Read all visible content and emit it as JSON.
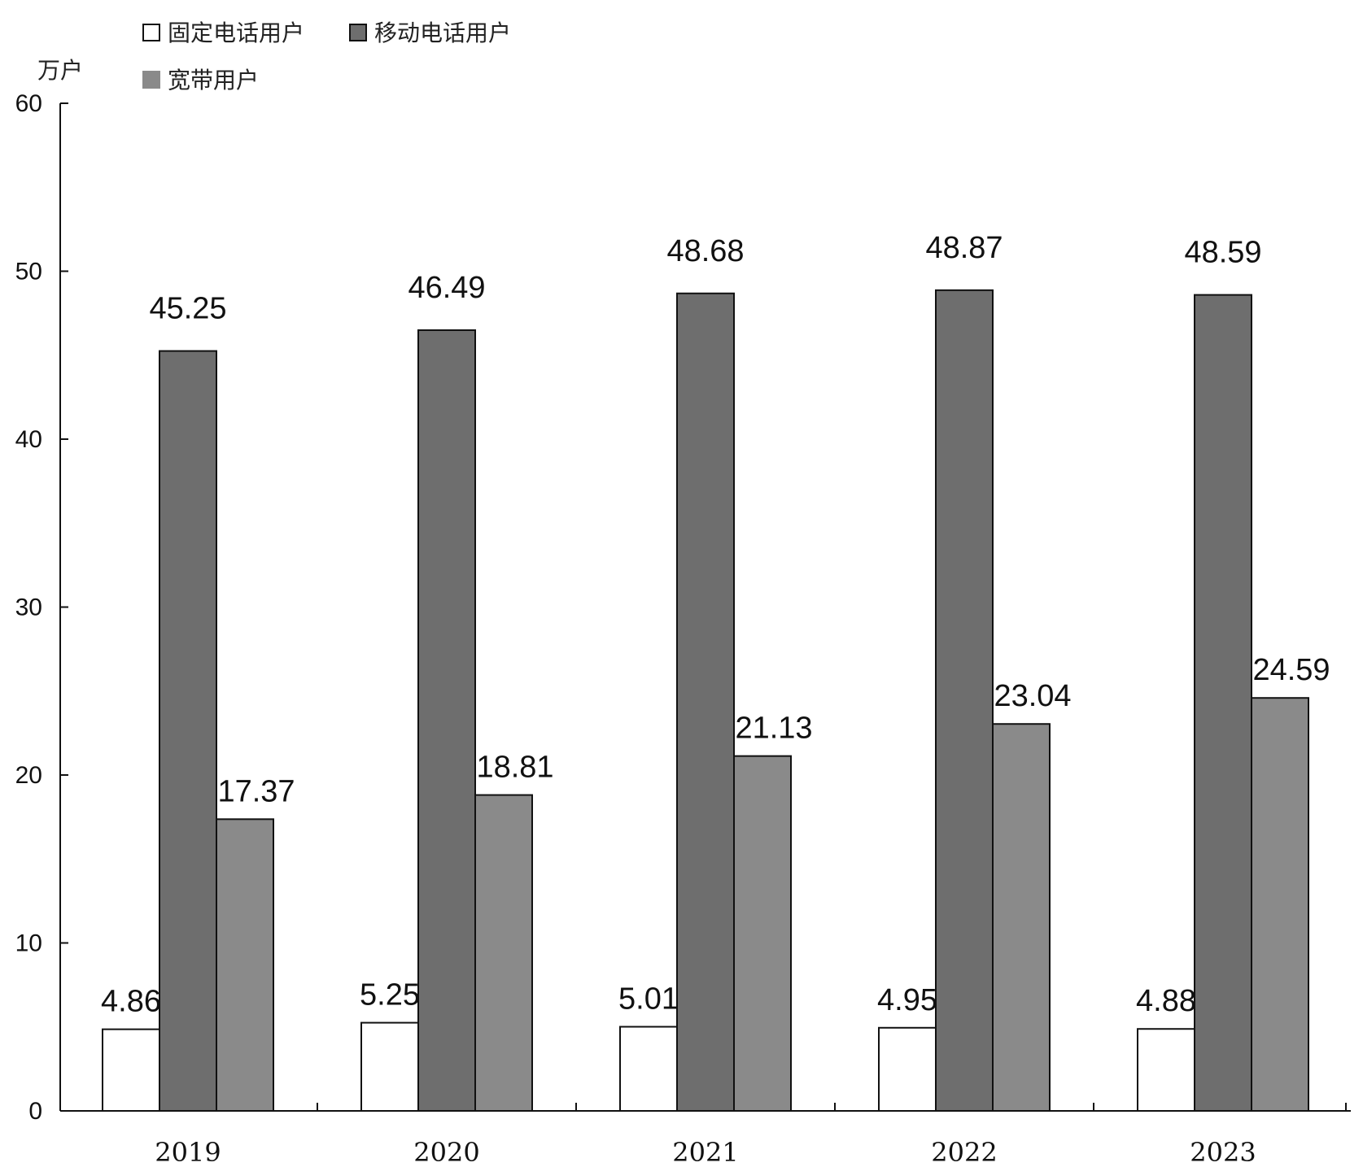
{
  "chart_data": {
    "type": "bar",
    "title": "",
    "xlabel": "",
    "ylabel": "万户",
    "categories": [
      "2019",
      "2020",
      "2021",
      "2022",
      "2023"
    ],
    "yticks": [
      0,
      10,
      20,
      30,
      40,
      50,
      60
    ],
    "ylim": [
      0,
      60
    ],
    "grid": false,
    "legend_position": "top-left",
    "series": [
      {
        "name": "固定电话用户",
        "values": [
          4.86,
          5.25,
          5.01,
          4.95,
          4.88
        ],
        "labels": [
          "4.86",
          "5.25",
          "5.01",
          "4.95",
          "4.88"
        ],
        "color": "#ffffff"
      },
      {
        "name": "移动电话用户",
        "values": [
          45.25,
          46.49,
          48.68,
          48.87,
          48.59
        ],
        "labels": [
          "45.25",
          "46.49",
          "48.68",
          "48.87",
          "48.59"
        ],
        "color": "#6e6e6e"
      },
      {
        "name": "宽带用户",
        "values": [
          17.37,
          18.81,
          21.13,
          23.04,
          24.59
        ],
        "labels": [
          "17.37",
          "18.81",
          "21.13",
          "23.04",
          "24.59"
        ],
        "color": "#8a8a8a"
      }
    ]
  }
}
